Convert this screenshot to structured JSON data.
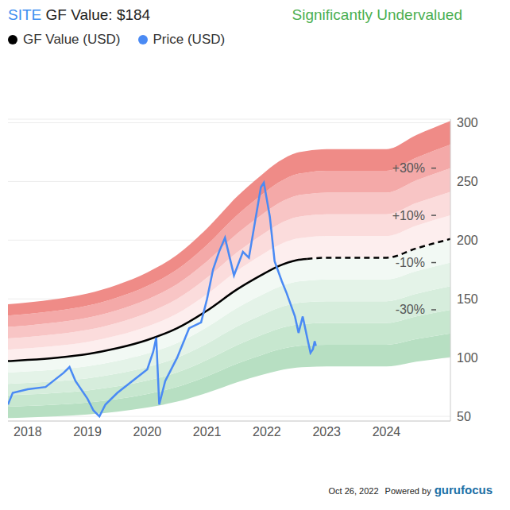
{
  "chart_data": {
    "type": "line",
    "title": "SITE GF Value: $184",
    "subtitle": "Significantly Undervalued",
    "footer": [
      "Oct 26, 2022",
      "Powered by",
      "gurufocus"
    ],
    "xlim": [
      2017.67,
      2025.07
    ],
    "xticks": [
      2018,
      2019,
      2020,
      2021,
      2022,
      2023,
      2024
    ],
    "ylim": [
      46,
      303
    ],
    "yticks": [
      50,
      100,
      150,
      200,
      250,
      300
    ],
    "grid": true,
    "legend": "top left",
    "series": [
      {
        "name": "GF Value (USD)",
        "color": "#000000",
        "marker": "circle",
        "x": [
          2017.67,
          2018.0,
          2018.5,
          2019.0,
          2019.5,
          2020.0,
          2020.5,
          2021.0,
          2021.5,
          2021.9,
          2022.2,
          2022.5,
          2022.67,
          2023.0,
          2023.5,
          2024.0,
          2024.5,
          2025.07
        ],
        "values": [
          97,
          98,
          100,
          103,
          108,
          115,
          125,
          140,
          158,
          170,
          178,
          183,
          184,
          185,
          185,
          185,
          193,
          201
        ],
        "dashed_from": 2022.67
      },
      {
        "name": "Price (USD)",
        "color": "#4a8af4",
        "marker": "circle",
        "x": [
          2017.67,
          2017.75,
          2018.0,
          2018.3,
          2018.6,
          2018.7,
          2018.8,
          2019.0,
          2019.1,
          2019.2,
          2019.3,
          2019.5,
          2019.8,
          2020.0,
          2020.1,
          2020.15,
          2020.2,
          2020.3,
          2020.5,
          2020.7,
          2020.9,
          2021.0,
          2021.1,
          2021.2,
          2021.3,
          2021.45,
          2021.6,
          2021.7,
          2021.8,
          2021.9,
          2021.95,
          2022.05,
          2022.13,
          2022.25,
          2022.33,
          2022.47,
          2022.53,
          2022.6,
          2022.67,
          2022.73,
          2022.77,
          2022.8,
          2022.82
        ],
        "values": [
          60,
          70,
          73,
          75,
          87,
          92,
          80,
          65,
          55,
          50,
          60,
          70,
          82,
          90,
          105,
          117,
          60,
          80,
          100,
          125,
          130,
          150,
          175,
          190,
          202,
          170,
          190,
          185,
          215,
          245,
          249,
          220,
          182,
          165,
          155,
          135,
          121,
          135,
          118,
          104,
          107,
          114,
          110
        ]
      }
    ],
    "band_edges": [
      -50,
      -40,
      -30,
      -20,
      -10,
      0,
      10,
      20,
      30,
      40,
      50
    ],
    "annotations": [
      {
        "value": 30,
        "label": "+30%"
      },
      {
        "value": 10,
        "label": "+10%"
      },
      {
        "value": -10,
        "label": "-10%"
      },
      {
        "value": -30,
        "label": "-30%"
      }
    ]
  }
}
